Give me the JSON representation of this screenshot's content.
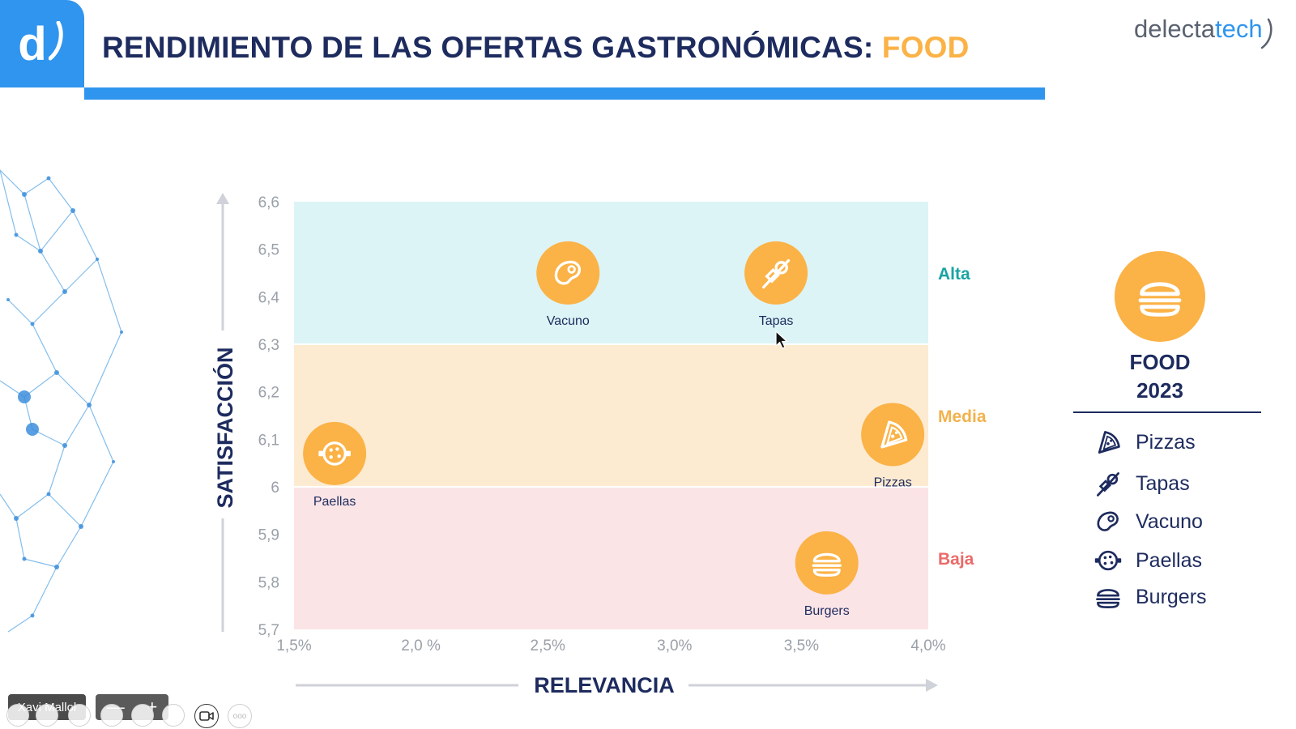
{
  "header": {
    "logo_letter": "d",
    "title_main": "RENDIMIENTO DE LAS OFERTAS GASTRONÓMICAS: ",
    "title_accent": "FOOD",
    "brand_left": "delecta",
    "brand_right": "tech"
  },
  "colors": {
    "navy": "#1d2b5e",
    "blue": "#2f95ee",
    "orange": "#fbb246",
    "band_alta": "#dcf4f5",
    "band_media": "#fdebd1",
    "band_baja": "#fbe4e6",
    "label_alta": "#1aa3a3",
    "label_media": "#f2b24c",
    "label_baja": "#ec6a6a"
  },
  "chart_data": {
    "type": "scatter",
    "xlabel": "RELEVANCIA",
    "ylabel": "SATISFACCIÓN",
    "xlim": [
      1.5,
      4.0
    ],
    "ylim": [
      5.7,
      6.6
    ],
    "x_ticks": [
      {
        "value": 1.5,
        "label": "1,5%"
      },
      {
        "value": 2.0,
        "label": "2,0 %"
      },
      {
        "value": 2.5,
        "label": "2,5%"
      },
      {
        "value": 3.0,
        "label": "3,0%"
      },
      {
        "value": 3.5,
        "label": "3,5%"
      },
      {
        "value": 4.0,
        "label": "4,0%"
      }
    ],
    "y_ticks": [
      {
        "value": 6.6,
        "label": "6,6"
      },
      {
        "value": 6.5,
        "label": "6,5"
      },
      {
        "value": 6.4,
        "label": "6,4"
      },
      {
        "value": 6.3,
        "label": "6,3"
      },
      {
        "value": 6.2,
        "label": "6,2"
      },
      {
        "value": 6.1,
        "label": "6,1"
      },
      {
        "value": 6.0,
        "label": "6"
      },
      {
        "value": 5.9,
        "label": "5,9"
      },
      {
        "value": 5.8,
        "label": "5,8"
      },
      {
        "value": 5.7,
        "label": "5,7"
      }
    ],
    "bands": [
      {
        "name": "Alta",
        "from": 6.3,
        "to": 6.6,
        "color_key": "band_alta",
        "label_color_key": "label_alta"
      },
      {
        "name": "Media",
        "from": 6.0,
        "to": 6.3,
        "color_key": "band_media",
        "label_color_key": "label_media"
      },
      {
        "name": "Baja",
        "from": 5.7,
        "to": 6.0,
        "color_key": "band_baja",
        "label_color_key": "label_baja"
      }
    ],
    "points": [
      {
        "name": "Vacuno",
        "x": 2.58,
        "y": 6.45,
        "icon": "steak-icon"
      },
      {
        "name": "Tapas",
        "x": 3.4,
        "y": 6.45,
        "icon": "skewer-icon"
      },
      {
        "name": "Paellas",
        "x": 1.66,
        "y": 6.07,
        "icon": "paella-icon"
      },
      {
        "name": "Pizzas",
        "x": 3.86,
        "y": 6.11,
        "icon": "pizza-icon"
      },
      {
        "name": "Burgers",
        "x": 3.6,
        "y": 5.84,
        "icon": "burger-icon"
      }
    ]
  },
  "legend": {
    "title_line1": "FOOD",
    "title_line2": "2023",
    "items": [
      {
        "label": "Pizzas",
        "icon": "pizza-icon"
      },
      {
        "label": "Tapas",
        "icon": "skewer-icon"
      },
      {
        "label": "Vacuno",
        "icon": "steak-icon"
      },
      {
        "label": "Paellas",
        "icon": "paella-icon"
      },
      {
        "label": "Burgers",
        "icon": "burger-icon"
      }
    ]
  },
  "toolbar": {
    "participant_name": "Xavi Mallol",
    "zoom_out_label": "—",
    "zoom_in_label": "+",
    "more_label": "ooo"
  }
}
